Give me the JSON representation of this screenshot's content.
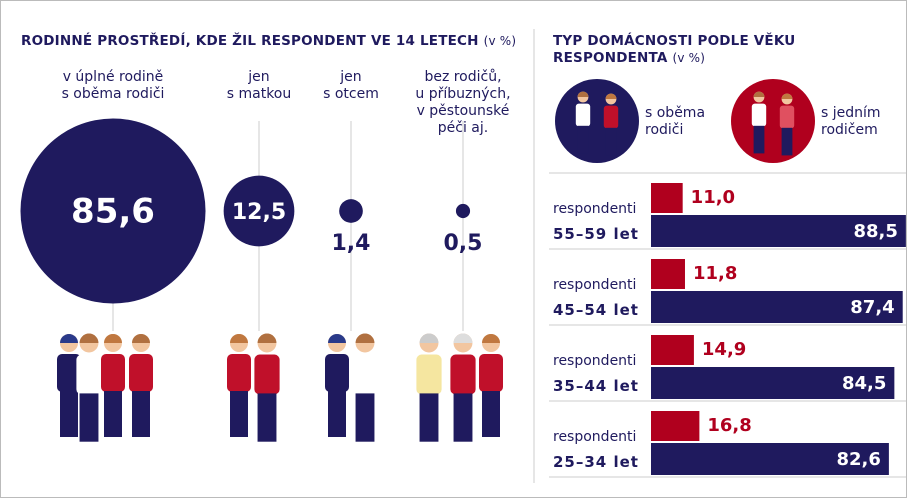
{
  "chart_data": [
    {
      "type": "bubble",
      "title": "RODINNÉ PROSTŘEDÍ, KDE ŽIL RESPONDENT VE 14 LETECH",
      "unit": "(v %)",
      "categories": [
        "v úplné rodině\ns oběma rodiči",
        "jen\ns matkou",
        "jen\ns otcem",
        "bez rodičů,\nu příbuzných,\nv pěstounské\npéči aj."
      ],
      "values": [
        85.6,
        12.5,
        1.4,
        0.5
      ],
      "value_labels": [
        "85,6",
        "12,5",
        "1,4",
        "0,5"
      ],
      "color": "#1f1a5e"
    },
    {
      "type": "bar",
      "orientation": "horizontal",
      "title": "TYP DOMÁCNOSTI PODLE VĚKU\nRESPONDENTA",
      "unit": "(v %)",
      "categories": [
        "respondenti\n55–59 let",
        "respondenti\n45–54 let",
        "respondenti\n35–44 let",
        "respondenti\n25–34 let"
      ],
      "series": [
        {
          "name": "s jedním\nrodičem",
          "color": "#b0001e",
          "values": [
            11.0,
            11.8,
            14.9,
            16.8
          ],
          "value_labels": [
            "11,0",
            "11,8",
            "14,9",
            "16,8"
          ]
        },
        {
          "name": "s oběma\nrodiči",
          "color": "#1f1a5e",
          "values": [
            88.5,
            87.4,
            84.5,
            82.6
          ],
          "value_labels": [
            "88,5",
            "87,4",
            "84,5",
            "82,6"
          ]
        }
      ]
    }
  ]
}
